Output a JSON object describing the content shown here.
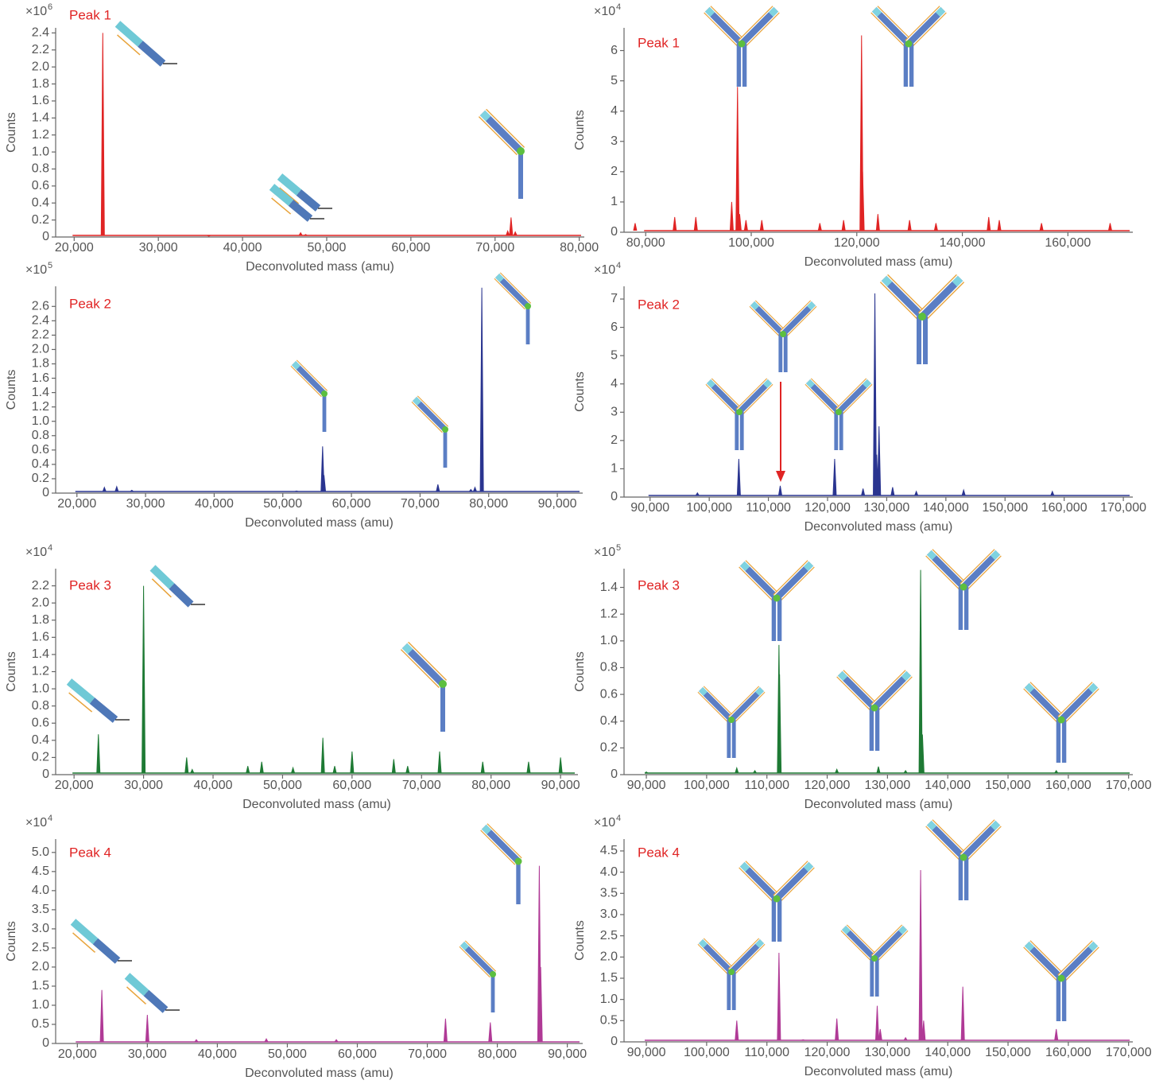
{
  "chart_data": [
    {
      "type": "spectrum",
      "annotation": "Peak 1",
      "y_multiplier": "×10",
      "y_multiplier_exp": "6",
      "xlabel": "Deconvoluted mass (amu)",
      "ylabel": "Counts",
      "color": "#e02424",
      "x": [
        23400,
        36000,
        46900,
        47500,
        71500,
        71900,
        72400
      ],
      "values": [
        2.4,
        0.01,
        0.05,
        0.03,
        0.07,
        0.23,
        0.06
      ],
      "xlim": [
        17800,
        80600
      ],
      "ylim": [
        0,
        2.46
      ],
      "xticks": [
        {
          "value": 20000,
          "label": "20,000"
        },
        {
          "value": 30000,
          "label": "30,000"
        },
        {
          "value": 40000,
          "label": "40,000"
        },
        {
          "value": 50000,
          "label": "50,000"
        },
        {
          "value": 60000,
          "label": "60,000"
        },
        {
          "value": 70000,
          "label": "70,000"
        },
        {
          "value": 80000,
          "label": "80,000"
        }
      ],
      "yticks": [
        0,
        0.2,
        0.4,
        0.6,
        0.8,
        {
          "value": 1,
          "label": "1.0"
        },
        1.2,
        1.4,
        1.6,
        1.8,
        {
          "value": 2,
          "label": "2.0"
        },
        2.2,
        2.4
      ]
    },
    {
      "type": "spectrum",
      "annotation": "Peak 1",
      "y_multiplier": "×10",
      "y_multiplier_exp": "4",
      "xlabel": "Deconvoluted mass (amu)",
      "ylabel": "Counts",
      "color": "#e02424",
      "x": [
        78000,
        85500,
        89500,
        96300,
        97400,
        97800,
        99000,
        102000,
        113000,
        117500,
        120900,
        121100,
        124000,
        130000,
        135000,
        145000,
        147000,
        155000,
        168000
      ],
      "values": [
        0.3,
        0.5,
        0.5,
        1.0,
        4.8,
        0.6,
        0.4,
        0.4,
        0.3,
        0.4,
        6.5,
        2.0,
        0.6,
        0.4,
        0.3,
        0.5,
        0.4,
        0.3,
        0.3
      ],
      "xlim": [
        75900,
        172300
      ],
      "ylim": [
        0,
        6.75
      ],
      "xticks": [
        {
          "value": 80000,
          "label": "80,000"
        },
        {
          "value": 100000,
          "label": "100,000"
        },
        {
          "value": 120000,
          "label": "120,000"
        },
        {
          "value": 140000,
          "label": "140,000"
        },
        {
          "value": 160000,
          "label": "160,000"
        }
      ],
      "yticks": [
        0,
        1,
        2,
        3,
        4,
        5,
        6
      ]
    },
    {
      "type": "spectrum",
      "annotation": "Peak 2",
      "y_multiplier": "×10",
      "y_multiplier_exp": "5",
      "xlabel": "Deconvoluted mass (amu)",
      "ylabel": "Counts",
      "color": "#2a3590",
      "x": [
        24000,
        25800,
        28000,
        52000,
        55800,
        56000,
        72600,
        77400,
        78000,
        79000
      ],
      "values": [
        0.08,
        0.09,
        0.04,
        0.03,
        0.65,
        0.25,
        0.12,
        0.05,
        0.08,
        2.86
      ],
      "xlim": [
        16900,
        93700
      ],
      "ylim": [
        0,
        2.88
      ],
      "xticks": [
        {
          "value": 20000,
          "label": "20,000"
        },
        {
          "value": 30000,
          "label": "30,000"
        },
        {
          "value": 40000,
          "label": "40,000"
        },
        {
          "value": 50000,
          "label": "50,000"
        },
        {
          "value": 60000,
          "label": "60,000"
        },
        {
          "value": 70000,
          "label": "70,000"
        },
        {
          "value": 80000,
          "label": "80,000"
        },
        {
          "value": 90000,
          "label": "90,000"
        }
      ],
      "yticks": [
        0,
        0.2,
        0.4,
        0.6,
        0.8,
        {
          "value": 1,
          "label": "1.0"
        },
        1.2,
        1.4,
        1.6,
        1.8,
        {
          "value": 2,
          "label": "2.0"
        },
        2.2,
        2.4,
        2.6
      ]
    },
    {
      "type": "spectrum",
      "annotation": "Peak 2",
      "y_multiplier": "×10",
      "y_multiplier_exp": "4",
      "xlabel": "Deconvoluted mass (amu)",
      "ylabel": "Counts",
      "color": "#2a3590",
      "x": [
        98000,
        105000,
        112000,
        121200,
        126000,
        128000,
        128300,
        128700,
        131000,
        135000,
        143000,
        158000
      ],
      "values": [
        0.15,
        1.35,
        0.4,
        1.35,
        0.3,
        7.2,
        1.5,
        2.5,
        0.35,
        0.2,
        0.25,
        0.2
      ],
      "xlim": [
        85600,
        171600
      ],
      "ylim": [
        0,
        7.45
      ],
      "xticks": [
        {
          "value": 90000,
          "label": "90,000"
        },
        {
          "value": 100000,
          "label": "100,000"
        },
        {
          "value": 110000,
          "label": "110,000"
        },
        {
          "value": 120000,
          "label": "120,000"
        },
        {
          "value": 130000,
          "label": "130,000"
        },
        {
          "value": 140000,
          "label": "140,000"
        },
        {
          "value": 150000,
          "label": "150,000"
        },
        {
          "value": 160000,
          "label": "160,000"
        },
        {
          "value": 170000,
          "label": "170,000"
        }
      ],
      "yticks": [
        0,
        1,
        2,
        3,
        4,
        5,
        6,
        7
      ]
    },
    {
      "type": "spectrum",
      "annotation": "Peak 3",
      "y_multiplier": "×10",
      "y_multiplier_exp": "4",
      "xlabel": "Deconvoluted mass (amu)",
      "ylabel": "Counts",
      "color": "#1e7a34",
      "x": [
        23500,
        30000,
        36200,
        37000,
        45000,
        47000,
        51500,
        55800,
        57500,
        60000,
        66000,
        68000,
        72600,
        78800,
        85400,
        90000
      ],
      "values": [
        0.47,
        2.2,
        0.2,
        0.06,
        0.1,
        0.15,
        0.08,
        0.43,
        0.1,
        0.27,
        0.18,
        0.1,
        0.27,
        0.15,
        0.15,
        0.2
      ],
      "xlim": [
        17350,
        92500
      ],
      "ylim": [
        0,
        2.4
      ],
      "xticks": [
        {
          "value": 20000,
          "label": "20,000"
        },
        {
          "value": 30000,
          "label": "30,000"
        },
        {
          "value": 40000,
          "label": "40,000"
        },
        {
          "value": 50000,
          "label": "50,000"
        },
        {
          "value": 60000,
          "label": "60,000"
        },
        {
          "value": 70000,
          "label": "70,000"
        },
        {
          "value": 80000,
          "label": "80,000"
        },
        {
          "value": 90000,
          "label": "90,000"
        }
      ],
      "yticks": [
        0,
        0.2,
        0.4,
        0.6,
        0.8,
        {
          "value": 1,
          "label": "1.0"
        },
        1.2,
        1.4,
        1.6,
        1.8,
        {
          "value": 2,
          "label": "2.0"
        },
        2.2
      ]
    },
    {
      "type": "spectrum",
      "annotation": "Peak 3",
      "y_multiplier": "×10",
      "y_multiplier_exp": "5",
      "xlabel": "Deconvoluted mass (amu)",
      "ylabel": "Counts",
      "color": "#1e7a34",
      "x": [
        90000,
        105000,
        108000,
        112000,
        112100,
        121600,
        128500,
        133000,
        135500,
        135800,
        158000
      ],
      "values": [
        0.02,
        0.05,
        0.03,
        0.97,
        0.75,
        0.04,
        0.06,
        0.03,
        1.53,
        0.3,
        0.03
      ],
      "xlim": [
        86300,
        170700
      ],
      "ylim": [
        0,
        1.54
      ],
      "xticks": [
        {
          "value": 90000,
          "label": "90,000"
        },
        {
          "value": 100000,
          "label": "100,000"
        },
        {
          "value": 110000,
          "label": "110,000"
        },
        {
          "value": 120000,
          "label": "120,000"
        },
        {
          "value": 130000,
          "label": "130,000"
        },
        {
          "value": 140000,
          "label": "140,000"
        },
        {
          "value": 150000,
          "label": "150,000"
        },
        {
          "value": 160000,
          "label": "160,000"
        },
        {
          "value": 170000,
          "label": "170,000"
        }
      ],
      "yticks": [
        0,
        0.2,
        0.4,
        0.6,
        0.8,
        {
          "value": 1,
          "label": "1.0"
        },
        1.2,
        1.4
      ]
    },
    {
      "type": "spectrum",
      "annotation": "Peak 4",
      "y_multiplier": "×10",
      "y_multiplier_exp": "4",
      "xlabel": "Deconvoluted mass (amu)",
      "ylabel": "Counts",
      "color": "#b03a96",
      "x": [
        23500,
        30000,
        37000,
        47000,
        57000,
        72600,
        79000,
        86000,
        86200
      ],
      "values": [
        1.4,
        0.75,
        0.1,
        0.12,
        0.1,
        0.65,
        0.55,
        4.65,
        2.0
      ],
      "xlim": [
        16900,
        92200
      ],
      "ylim": [
        0,
        5.35
      ],
      "xticks": [
        {
          "value": 20000,
          "label": "20,000"
        },
        {
          "value": 30000,
          "label": "30,000"
        },
        {
          "value": 40000,
          "label": "40,000"
        },
        {
          "value": 50000,
          "label": "50,000"
        },
        {
          "value": 60000,
          "label": "60,000"
        },
        {
          "value": 70000,
          "label": "70,000"
        },
        {
          "value": 80000,
          "label": "80,000"
        },
        {
          "value": 90000,
          "label": "90,000"
        }
      ],
      "yticks": [
        0,
        0.5,
        {
          "value": 1,
          "label": "1.0"
        },
        1.5,
        {
          "value": 2,
          "label": "2.0"
        },
        2.5,
        {
          "value": 3,
          "label": "3.0"
        },
        3.5,
        {
          "value": 4,
          "label": "4.0"
        },
        4.5,
        {
          "value": 5,
          "label": "5.0"
        }
      ]
    },
    {
      "type": "spectrum",
      "annotation": "Peak 4",
      "y_multiplier": "×10",
      "y_multiplier_exp": "4",
      "xlabel": "Deconvoluted mass (amu)",
      "ylabel": "Counts",
      "color": "#b03a96",
      "x": [
        105000,
        112000,
        116000,
        121600,
        128300,
        128800,
        133000,
        135500,
        136000,
        142500,
        158000
      ],
      "values": [
        0.5,
        2.1,
        0.05,
        0.55,
        0.85,
        0.3,
        0.1,
        4.05,
        0.5,
        1.3,
        0.3
      ],
      "xlim": [
        86300,
        170700
      ],
      "ylim": [
        0,
        4.78
      ],
      "xticks": [
        {
          "value": 90000,
          "label": "90,000"
        },
        {
          "value": 100000,
          "label": "100,000"
        },
        {
          "value": 110000,
          "label": "110,000"
        },
        {
          "value": 120000,
          "label": "120,000"
        },
        {
          "value": 130000,
          "label": "130,000"
        },
        {
          "value": 140000,
          "label": "140,000"
        },
        {
          "value": 150000,
          "label": "150,000"
        },
        {
          "value": 160000,
          "label": "160,000"
        },
        {
          "value": 170000,
          "label": "170,000"
        }
      ],
      "yticks": [
        0,
        0.5,
        {
          "value": 1,
          "label": "1.0"
        },
        1.5,
        {
          "value": 2,
          "label": "2.0"
        },
        2.5,
        {
          "value": 3,
          "label": "3.0"
        },
        3.5,
        {
          "value": 4,
          "label": "4.0"
        },
        4.5
      ]
    }
  ]
}
